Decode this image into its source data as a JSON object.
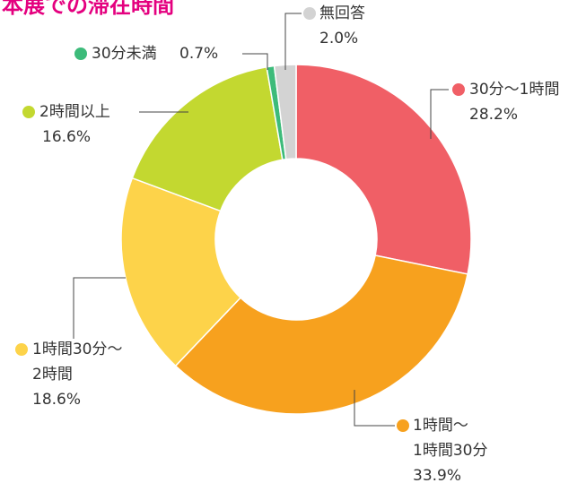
{
  "chart_data": {
    "type": "donut",
    "title": "本展での滞在時間",
    "categories": [
      "30分～1時間",
      "1時間～\n1時間30分",
      "1時間30分～\n2時間",
      "2時間以上",
      "30分未満",
      "無回答"
    ],
    "values": [
      28.2,
      33.9,
      18.6,
      16.6,
      0.7,
      2.0
    ],
    "value_labels": [
      "28.2%",
      "33.9%",
      "18.6%",
      "16.6%",
      "0.7%",
      "2.0%"
    ],
    "colors": [
      "#f05f66",
      "#f7a11e",
      "#fdd34a",
      "#c3d830",
      "#3dbb7a",
      "#d3d3d3"
    ]
  }
}
